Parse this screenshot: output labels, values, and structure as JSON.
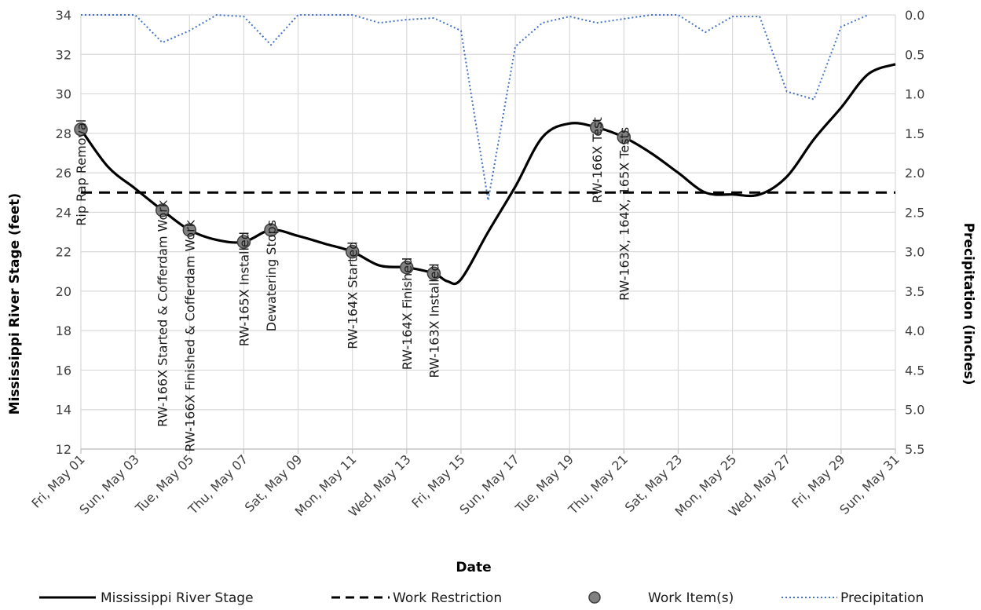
{
  "chart_data": {
    "type": "line",
    "title": "",
    "xlabel": "Date",
    "ylabel": "Mississippi River Stage (feet)",
    "y2label": "Precipitation (inches)",
    "ylim": [
      12,
      34
    ],
    "y2lim": [
      0.0,
      5.5
    ],
    "y2_inverted": true,
    "x_ticks": [
      "Fri, May 01",
      "Sun, May 03",
      "Tue, May 05",
      "Thu, May 07",
      "Sat, May 09",
      "Mon, May 11",
      "Wed, May 13",
      "Fri, May 15",
      "Sun, May 17",
      "Tue, May 19",
      "Thu, May 21",
      "Sat, May 23",
      "Mon, May 25",
      "Wed, May 27",
      "Fri, May 29",
      "Sun, May 31"
    ],
    "y_ticks": [
      "12",
      "14",
      "16",
      "18",
      "20",
      "22",
      "24",
      "26",
      "28",
      "30",
      "32",
      "34"
    ],
    "y2_ticks": [
      "0.0",
      "0.5",
      "1.0",
      "1.5",
      "2.0",
      "2.5",
      "3.0",
      "3.5",
      "4.0",
      "4.5",
      "5.0",
      "5.5"
    ],
    "x_day_range": [
      1,
      31
    ],
    "grid": true,
    "legend_position": "bottom",
    "series": [
      {
        "name": "Mississippi River Stage",
        "style": "solid",
        "color": "#000000",
        "x": [
          1,
          2,
          3,
          4,
          5,
          6,
          7,
          8,
          9,
          10,
          11,
          12,
          13,
          14,
          14.5,
          15,
          16,
          17,
          18,
          19,
          20,
          21,
          22,
          23,
          24,
          25,
          26,
          27,
          28,
          29,
          30,
          31
        ],
        "y": [
          28.2,
          26.3,
          25.2,
          24.1,
          23.1,
          22.6,
          22.5,
          23.1,
          22.8,
          22.4,
          22.0,
          21.3,
          21.2,
          20.9,
          20.5,
          20.6,
          23.0,
          25.3,
          27.8,
          28.5,
          28.3,
          27.8,
          27.0,
          26.0,
          25.0,
          24.9,
          24.9,
          25.8,
          27.7,
          29.3,
          31.0,
          31.5
        ]
      },
      {
        "name": "Work Restriction",
        "style": "dashed",
        "color": "#000000",
        "x": [
          1,
          31
        ],
        "y": [
          25,
          25
        ]
      },
      {
        "name": "Work Item(s)",
        "style": "marker",
        "color": "#808080",
        "x": [
          1,
          4,
          5,
          7,
          8,
          11,
          13,
          14,
          20,
          21
        ],
        "y": [
          28.2,
          24.1,
          23.1,
          22.5,
          23.1,
          22.0,
          21.2,
          20.9,
          28.3,
          27.8
        ],
        "labels": [
          "Rip Rap Removal",
          "RW-166X Started  & Cofferdam Work",
          "RW-166X Finished  & Cofferdam Work",
          "RW-165X Installed",
          "Dewatering Stops",
          "RW-164X Started",
          "RW-164X Finished",
          "RW-163X Installed",
          "RW-166X Test",
          "RW-163X, 164X, 165X Tests"
        ]
      },
      {
        "name": "Precipitation",
        "style": "dotted",
        "color": "#4472C4",
        "axis": "right",
        "x": [
          1,
          2,
          3,
          4,
          5,
          6,
          7,
          8,
          9,
          10,
          11,
          12,
          13,
          14,
          15,
          16,
          17,
          18,
          19,
          20,
          21,
          22,
          23,
          24,
          25,
          26,
          27,
          28,
          29,
          30,
          31
        ],
        "y": [
          0.0,
          0.0,
          0.0,
          0.35,
          0.2,
          0.0,
          0.02,
          0.38,
          0.0,
          0.0,
          0.0,
          0.1,
          0.06,
          0.04,
          0.2,
          2.35,
          0.4,
          0.1,
          0.02,
          0.1,
          0.05,
          0.0,
          0.0,
          0.22,
          0.02,
          0.02,
          0.97,
          1.07,
          0.15,
          0.0,
          null
        ]
      }
    ]
  }
}
